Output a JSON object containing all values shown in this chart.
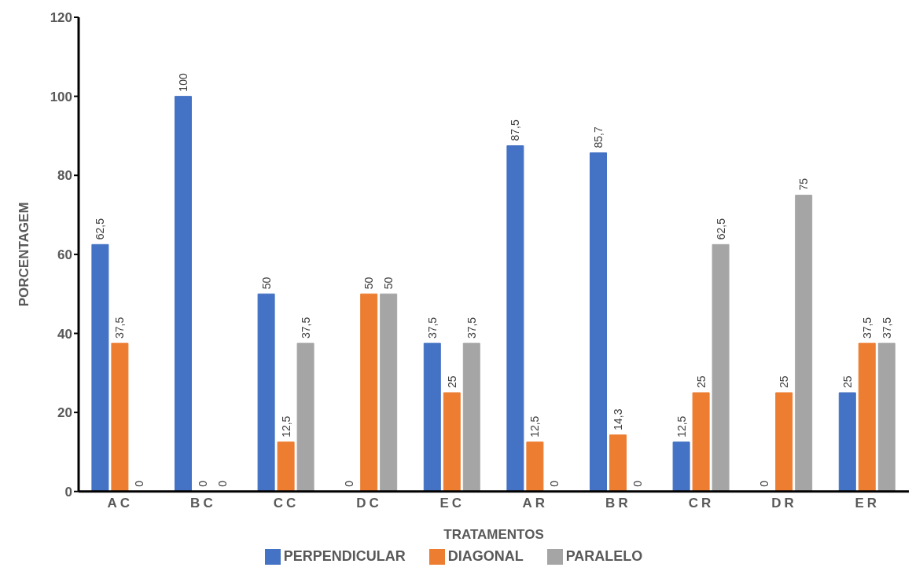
{
  "chart_data": {
    "type": "bar",
    "xlabel": "TRATAMENTOS",
    "ylabel": "PORCENTAGEM",
    "categories": [
      "AC",
      "BC",
      "CC",
      "DC",
      "EC",
      "AR",
      "BR",
      "CR",
      "DR",
      "ER"
    ],
    "series": [
      {
        "name": "PERPENDICULAR",
        "color": "#4472c4",
        "values": [
          62.5,
          100,
          50,
          0,
          37.5,
          87.5,
          85.7,
          12.5,
          0,
          25
        ],
        "value_labels": [
          "62,5",
          "100",
          "50",
          "0",
          "37,5",
          "87,5",
          "85,7",
          "12,5",
          "0",
          "25"
        ]
      },
      {
        "name": "DIAGONAL",
        "color": "#ed7d31",
        "values": [
          37.5,
          0,
          12.5,
          50,
          25,
          12.5,
          14.3,
          25,
          25,
          37.5
        ],
        "value_labels": [
          "37,5",
          "0",
          "12,5",
          "50",
          "25",
          "12,5",
          "14,3",
          "25",
          "25",
          "37,5"
        ]
      },
      {
        "name": "PARALELO",
        "color": "#a5a5a5",
        "values": [
          0,
          0,
          37.5,
          50,
          37.5,
          0,
          0,
          62.5,
          75,
          37.5
        ],
        "value_labels": [
          "0",
          "0",
          "37,5",
          "50",
          "37,5",
          "0",
          "0",
          "62,5",
          "75",
          "37,5"
        ]
      }
    ],
    "ylim": [
      0,
      120
    ],
    "yticks": [
      0,
      20,
      40,
      60,
      80,
      100,
      120
    ],
    "grid": false,
    "legend": "bottom"
  }
}
